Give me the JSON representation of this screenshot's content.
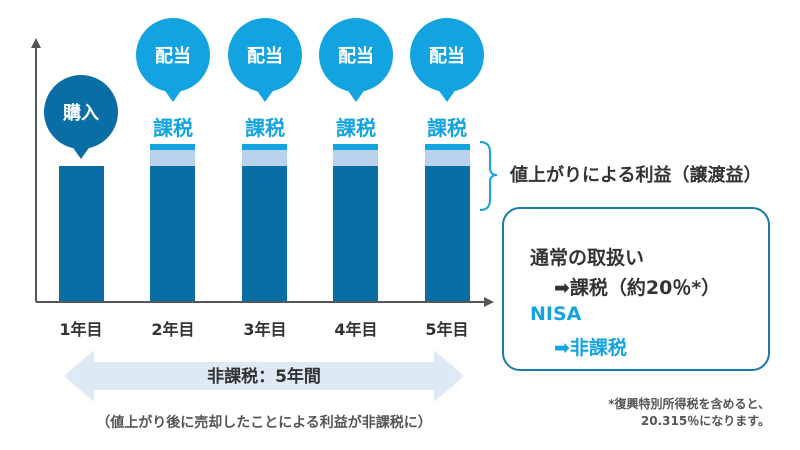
{
  "years": [
    {
      "year_label": "1年目",
      "event_label": "購入",
      "tax_label": "",
      "has_gain": false
    },
    {
      "year_label": "2年目",
      "event_label": "配当",
      "tax_label": "課税",
      "has_gain": true
    },
    {
      "year_label": "3年目",
      "event_label": "配当",
      "tax_label": "課税",
      "has_gain": true
    },
    {
      "year_label": "4年目",
      "event_label": "配当",
      "tax_label": "課税",
      "has_gain": true
    },
    {
      "year_label": "5年目",
      "event_label": "配当",
      "tax_label": "課税",
      "has_gain": true
    }
  ],
  "gain_label": "値上がりによる利益（譲渡益）",
  "period": {
    "label": "非課税：5年間",
    "note": "（値上がり後に売却したことによる利益が非課税に）"
  },
  "comparison": {
    "normal_title": "通常の取扱い",
    "normal_value": "➡課税（約20％*）",
    "nisa_title": "NISA",
    "nisa_value": "➡非課税"
  },
  "footnote": {
    "line1": "*復興特別所得税を含めると、",
    "line2": "20.315％になります。"
  },
  "colors": {
    "bar": "#0a6ea5",
    "gain": "#b9d3ec",
    "dividend_cap": "#13a3e0",
    "purchase_bubble": "#0a6ea5",
    "dividend_bubble": "#13a3e0",
    "axis": "#555555",
    "brace": "#13a3e0",
    "period_arrow": "#dde9f5"
  }
}
